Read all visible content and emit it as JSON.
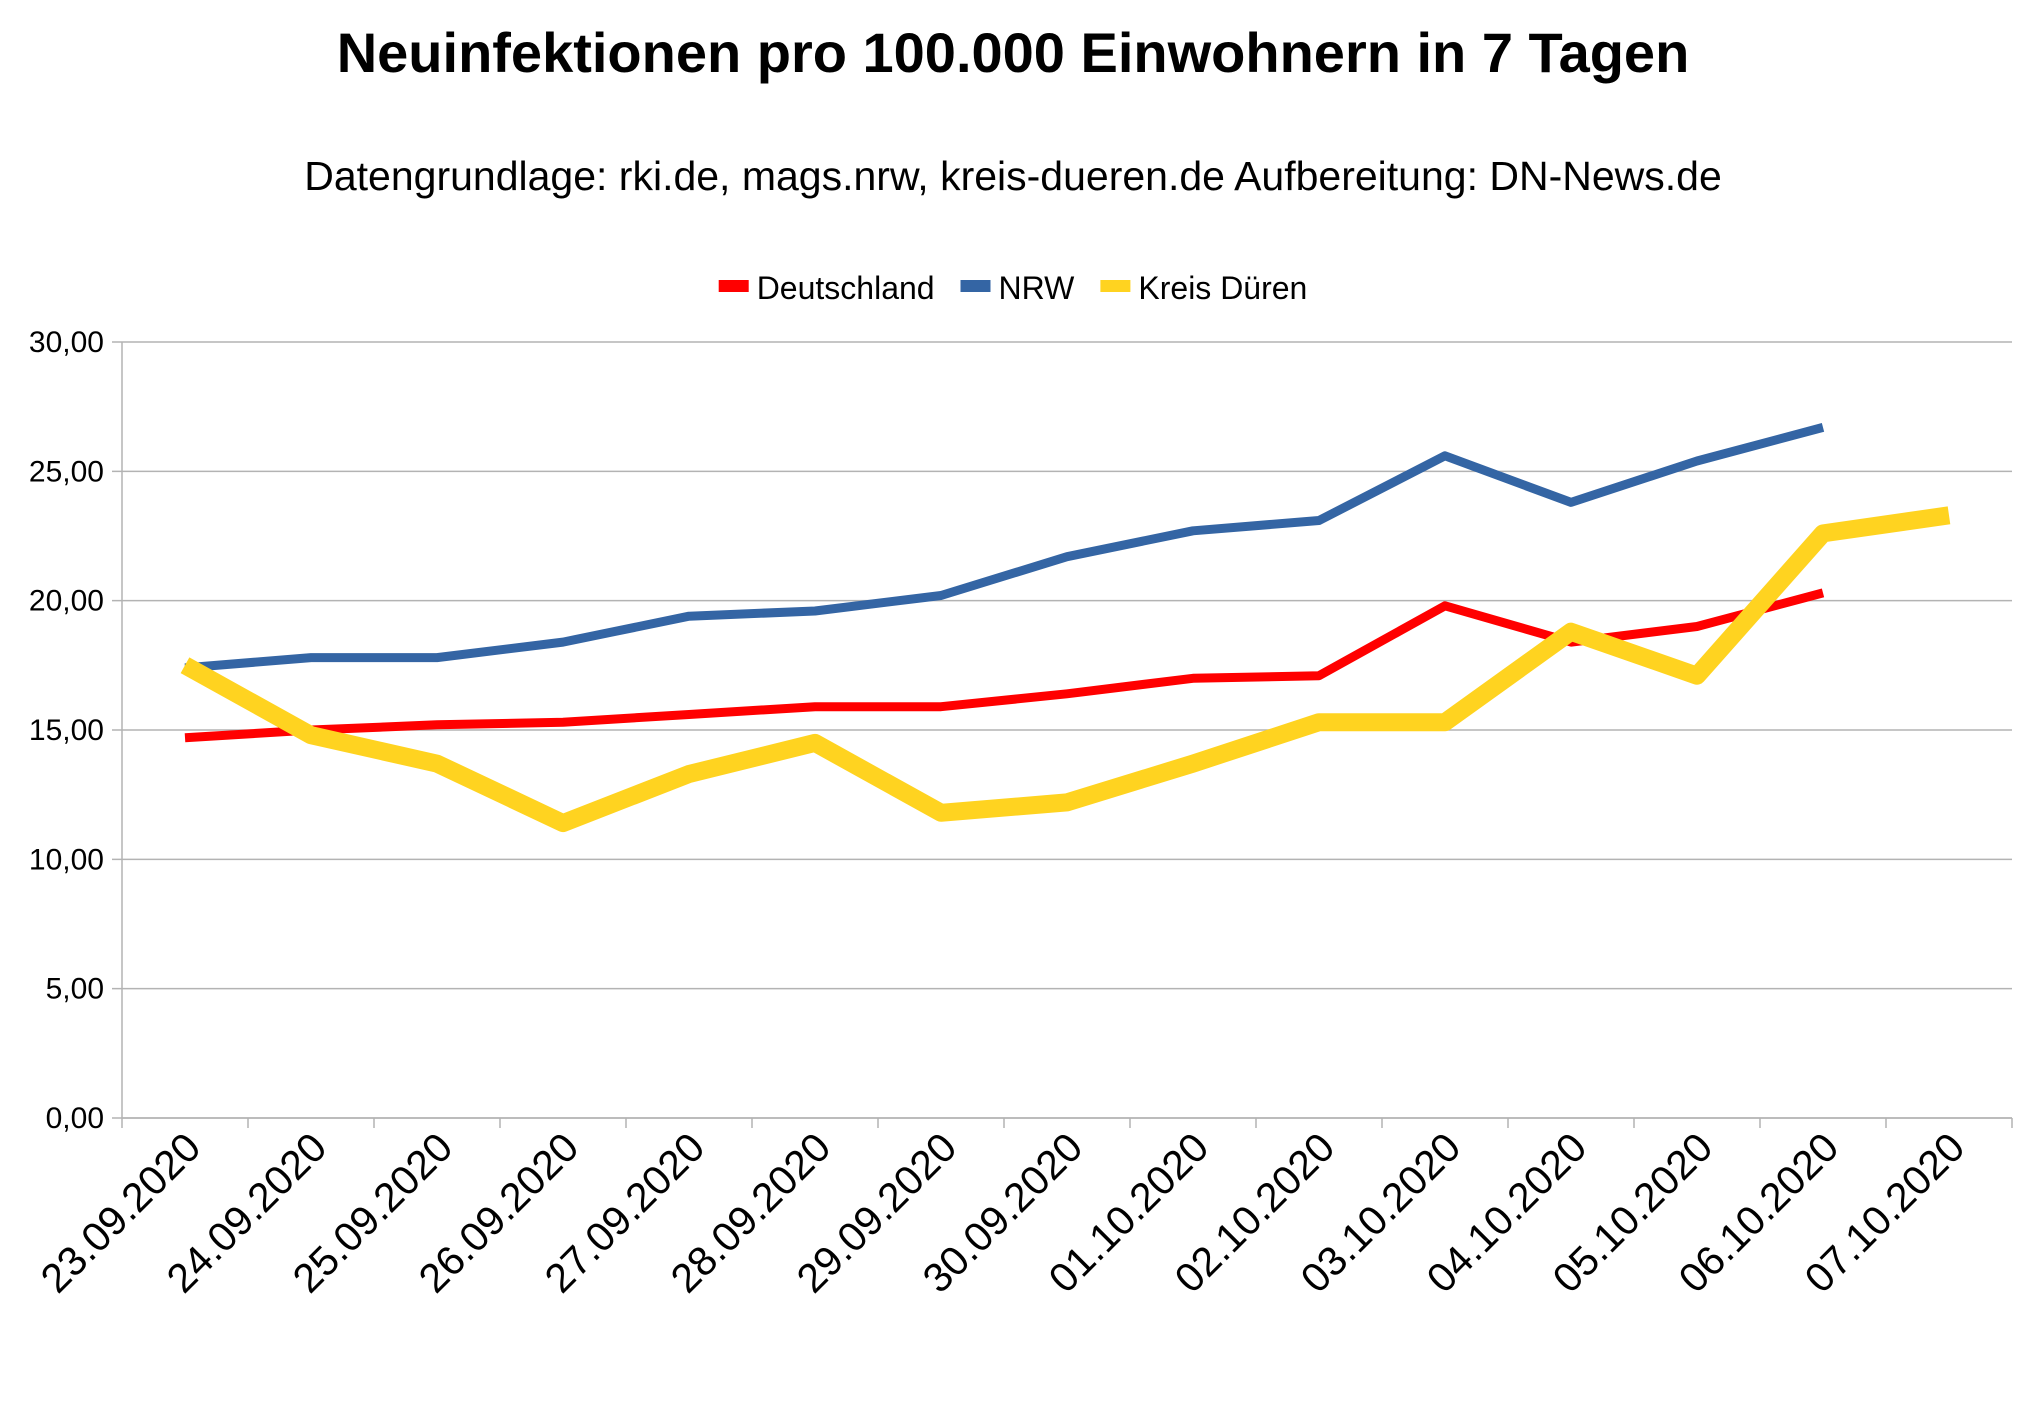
{
  "chart_data": {
    "type": "line",
    "title": "Neuinfektionen pro 100.000 Einwohnern in 7 Tagen",
    "subtitle": "Datengrundlage: rki.de, mags.nrw, kreis-dueren.de Aufbereitung: DN-News.de",
    "xlabel": "",
    "ylabel": "",
    "ylim": [
      0,
      30
    ],
    "yticks": [
      "0,00",
      "5,00",
      "10,00",
      "15,00",
      "20,00",
      "25,00",
      "30,00"
    ],
    "grid": true,
    "legend_position": "top",
    "categories": [
      "23.09.2020",
      "24.09.2020",
      "25.09.2020",
      "26.09.2020",
      "27.09.2020",
      "28.09.2020",
      "29.09.2020",
      "30.09.2020",
      "01.10.2020",
      "02.10.2020",
      "03.10.2020",
      "04.10.2020",
      "05.10.2020",
      "06.10.2020",
      "07.10.2020"
    ],
    "series": [
      {
        "name": "Deutschland",
        "color": "#ff0000",
        "values": [
          14.7,
          15.0,
          15.2,
          15.3,
          15.6,
          15.9,
          15.9,
          16.4,
          17.0,
          17.1,
          19.8,
          18.4,
          19.0,
          20.3,
          null
        ]
      },
      {
        "name": "NRW",
        "color": "#3465a4",
        "values": [
          17.4,
          17.8,
          17.8,
          18.4,
          19.4,
          19.6,
          20.2,
          21.7,
          22.7,
          23.1,
          25.6,
          23.8,
          25.4,
          26.7,
          null
        ]
      },
      {
        "name": "Kreis Düren",
        "color": "#ffd320",
        "values": [
          17.5,
          14.8,
          13.7,
          11.4,
          13.3,
          14.5,
          11.8,
          12.2,
          13.7,
          15.3,
          15.3,
          18.8,
          17.1,
          22.6,
          23.3
        ]
      }
    ]
  }
}
